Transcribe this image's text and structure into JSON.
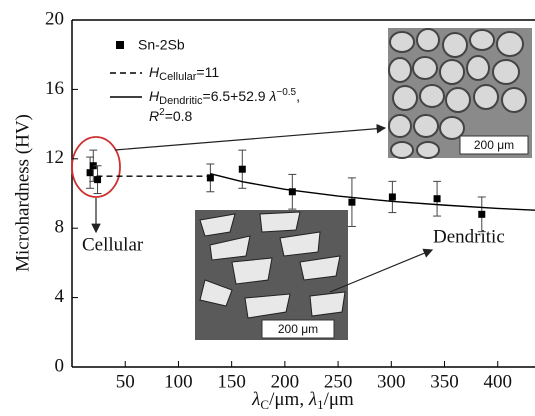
{
  "chart_data": {
    "type": "scatter",
    "x_label_parts": [
      "λ",
      "C",
      "/μm, ",
      "λ",
      "1",
      "/μm"
    ],
    "y_label": "Microhardness (HV)",
    "xlim": [
      0,
      435
    ],
    "ylim": [
      0,
      20
    ],
    "xticks": [
      50,
      100,
      150,
      200,
      250,
      300,
      350,
      400
    ],
    "yticks": [
      0,
      4,
      8,
      12,
      16,
      20
    ],
    "series": [
      {
        "name": "Sn-2Sb",
        "color": "#000000",
        "x": [
          17,
          20,
          24,
          130,
          160,
          207,
          263,
          301,
          343,
          385
        ],
        "values": [
          11.2,
          11.6,
          10.8,
          10.9,
          11.4,
          10.1,
          9.5,
          9.8,
          9.7,
          8.8
        ],
        "errors": [
          0.9,
          0.9,
          0.8,
          0.8,
          1.1,
          1.0,
          1.4,
          0.9,
          1.0,
          1.0
        ]
      },
      {
        "label_parts": [
          "H",
          "Cellular",
          "=11"
        ],
        "color": "#000000",
        "dash": true,
        "x": [
          23,
          130
        ],
        "values": [
          11,
          11
        ]
      },
      {
        "label_parts": [
          "H",
          "Dendritic",
          "=6.5+52.9 ",
          "λ",
          "−0.5",
          ","
        ],
        "label_line2": [
          "R",
          "2",
          "=0.8"
        ],
        "color": "#000000",
        "dash": false,
        "x": [
          130,
          160,
          200,
          250,
          300,
          350,
          400,
          435
        ],
        "values": [
          11.14,
          10.68,
          10.24,
          9.85,
          9.55,
          9.33,
          9.14,
          9.04
        ]
      }
    ],
    "annotations": {
      "cellular": "Cellular",
      "dendritic": "Dendritic",
      "scale_top": "200 μm",
      "scale_bottom": "200 μm"
    }
  }
}
